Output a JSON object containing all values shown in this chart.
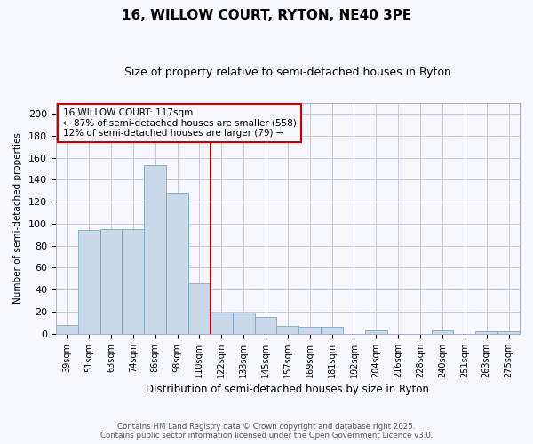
{
  "title": "16, WILLOW COURT, RYTON, NE40 3PE",
  "subtitle": "Size of property relative to semi-detached houses in Ryton",
  "xlabel": "Distribution of semi-detached houses by size in Ryton",
  "ylabel": "Number of semi-detached properties",
  "categories": [
    "39sqm",
    "51sqm",
    "63sqm",
    "74sqm",
    "86sqm",
    "98sqm",
    "110sqm",
    "122sqm",
    "133sqm",
    "145sqm",
    "157sqm",
    "169sqm",
    "181sqm",
    "192sqm",
    "204sqm",
    "216sqm",
    "228sqm",
    "240sqm",
    "251sqm",
    "263sqm",
    "275sqm"
  ],
  "values": [
    8,
    94,
    95,
    95,
    153,
    128,
    46,
    19,
    19,
    15,
    7,
    6,
    6,
    0,
    3,
    0,
    0,
    3,
    0,
    2,
    2
  ],
  "bar_color": "#c9d9ea",
  "bar_edge_color": "#7aaac8",
  "vline_color": "#cc0000",
  "annotation_title": "16 WILLOW COURT: 117sqm",
  "annotation_line2": "← 87% of semi-detached houses are smaller (558)",
  "annotation_line3": "12% of semi-detached houses are larger (79) →",
  "annotation_box_edgecolor": "#cc0000",
  "ylim": [
    0,
    210
  ],
  "yticks": [
    0,
    20,
    40,
    60,
    80,
    100,
    120,
    140,
    160,
    180,
    200
  ],
  "footnote1": "Contains HM Land Registry data © Crown copyright and database right 2025.",
  "footnote2": "Contains public sector information licensed under the Open Government Licence v3.0.",
  "bg_color": "#f7f7ff",
  "grid_color": "#c8c8dc"
}
